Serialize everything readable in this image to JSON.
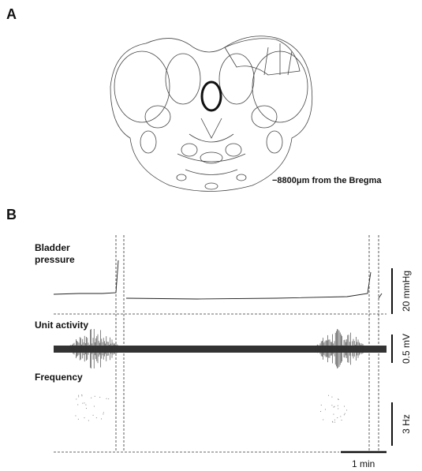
{
  "panel_a": {
    "label": "A",
    "caption": "−8800μm from the Bregma"
  },
  "panel_b": {
    "label": "B",
    "traces": [
      {
        "label_lines": [
          "Bladder",
          "pressure"
        ],
        "scale": "20 mmHg"
      },
      {
        "label_lines": [
          "Unit activity"
        ],
        "scale": "0.5 mV"
      },
      {
        "label_lines": [
          "Frequency"
        ],
        "scale": "3 Hz"
      }
    ],
    "time_scale": "1 min"
  }
}
